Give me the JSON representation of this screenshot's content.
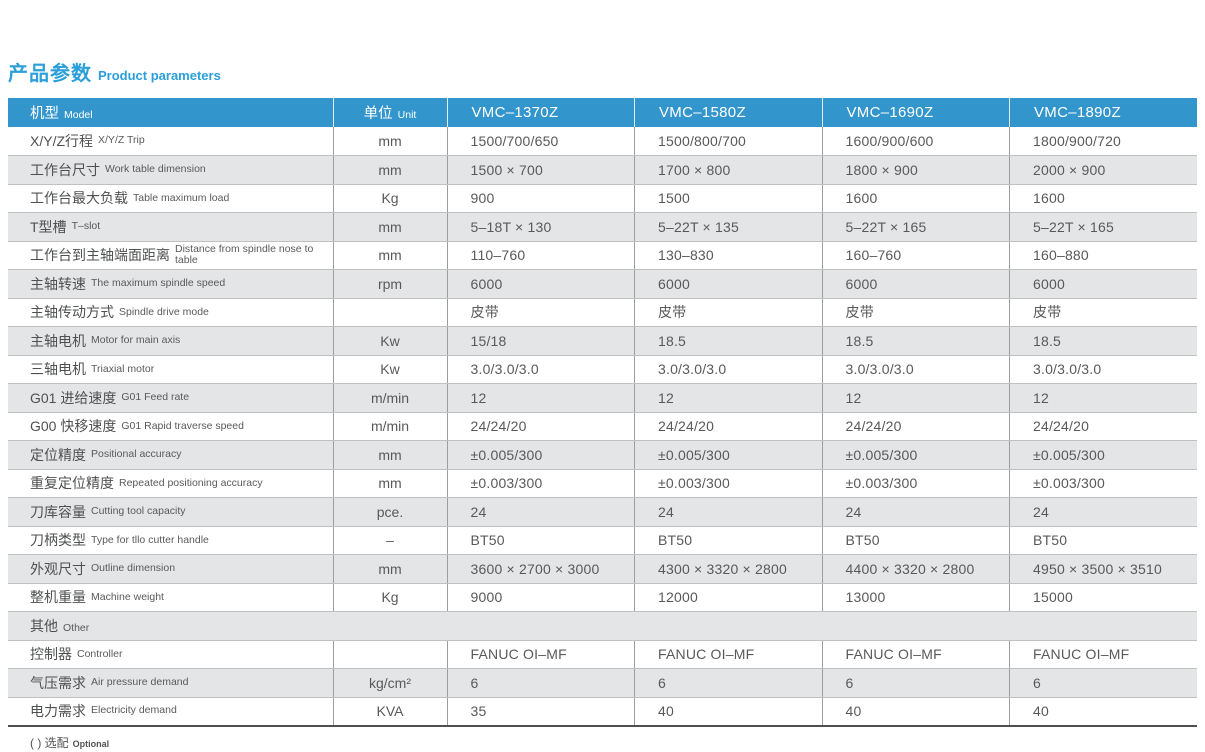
{
  "page": {
    "title_zh": "产品参数",
    "title_en": "Product parameters",
    "footnote_zh": "( ) 选配",
    "footnote_en": "Optional"
  },
  "colors": {
    "accent_blue": "#2b9fd9",
    "header_blue": "#3296cd",
    "stripe_gray": "#e4e5e6",
    "text_gray": "#58595b"
  },
  "table": {
    "header": {
      "model_zh": "机型",
      "model_en": "Model",
      "unit_zh": "单位",
      "unit_en": "Unit",
      "models": [
        "VMC–1370Z",
        "VMC–1580Z",
        "VMC–1690Z",
        "VMC–1890Z"
      ]
    },
    "rows": [
      {
        "zh": "X/Y/Z行程",
        "en": "X/Y/Z Trip",
        "unit": "mm",
        "values": [
          "1500/700/650",
          "1500/800/700",
          "1600/900/600",
          "1800/900/720"
        ]
      },
      {
        "zh": "工作台尺寸",
        "en": "Work table dimension",
        "unit": "mm",
        "values": [
          "1500 × 700",
          "1700 × 800",
          "1800 × 900",
          "2000 × 900"
        ]
      },
      {
        "zh": "工作台最大负载",
        "en": "Table maximum load",
        "unit": "Kg",
        "values": [
          "900",
          "1500",
          "1600",
          "1600"
        ]
      },
      {
        "zh": "T型槽",
        "en": "T–slot",
        "unit": "mm",
        "values": [
          "5–18T × 130",
          "5–22T × 135",
          "5–22T × 165",
          "5–22T × 165"
        ]
      },
      {
        "zh": "工作台到主轴端面距离",
        "en": "Distance from spindle nose to table",
        "unit": "mm",
        "values": [
          "110–760",
          "130–830",
          "160–760",
          "160–880"
        ]
      },
      {
        "zh": "主轴转速",
        "en": "The maximum spindle speed",
        "unit": "rpm",
        "values": [
          "6000",
          "6000",
          "6000",
          "6000"
        ]
      },
      {
        "zh": "主轴传动方式",
        "en": "Spindle drive mode",
        "unit": "",
        "values": [
          "皮带",
          "皮带",
          "皮带",
          "皮带"
        ]
      },
      {
        "zh": "主轴电机",
        "en": "Motor for main axis",
        "unit": "Kw",
        "values": [
          "15/18",
          "18.5",
          "18.5",
          "18.5"
        ]
      },
      {
        "zh": "三轴电机",
        "en": "Triaxial motor",
        "unit": "Kw",
        "values": [
          "3.0/3.0/3.0",
          "3.0/3.0/3.0",
          "3.0/3.0/3.0",
          "3.0/3.0/3.0"
        ]
      },
      {
        "zh": "G01 进给速度",
        "en": "G01 Feed rate",
        "unit": "m/min",
        "values": [
          "12",
          "12",
          "12",
          "12"
        ]
      },
      {
        "zh": "G00 快移速度",
        "en": "G01 Rapid traverse speed",
        "unit": "m/min",
        "values": [
          "24/24/20",
          "24/24/20",
          "24/24/20",
          "24/24/20"
        ]
      },
      {
        "zh": "定位精度",
        "en": "Positional accuracy",
        "unit": "mm",
        "values": [
          "±0.005/300",
          "±0.005/300",
          "±0.005/300",
          "±0.005/300"
        ]
      },
      {
        "zh": "重复定位精度",
        "en": "Repeated positioning accuracy",
        "unit": "mm",
        "values": [
          "±0.003/300",
          "±0.003/300",
          "±0.003/300",
          "±0.003/300"
        ]
      },
      {
        "zh": "刀库容量",
        "en": "Cutting tool capacity",
        "unit": "pce.",
        "values": [
          "24",
          "24",
          "24",
          "24"
        ]
      },
      {
        "zh": "刀柄类型",
        "en": "Type for tllo cutter handle",
        "unit": "–",
        "values": [
          "BT50",
          "BT50",
          "BT50",
          "BT50"
        ]
      },
      {
        "zh": "外观尺寸",
        "en": "Outline dimension",
        "unit": "mm",
        "values": [
          "3600 × 2700 × 3000",
          "4300 × 3320 × 2800",
          "4400 × 3320 × 2800",
          "4950 × 3500 × 3510"
        ]
      },
      {
        "zh": "整机重量",
        "en": "Machine weight",
        "unit": "Kg",
        "values": [
          "9000",
          "12000",
          "13000",
          "15000"
        ]
      },
      {
        "zh": "其他",
        "en": "Other",
        "section": true
      },
      {
        "zh": "控制器",
        "en": "Controller",
        "unit": "",
        "values": [
          "FANUC OI–MF",
          "FANUC OI–MF",
          "FANUC OI–MF",
          "FANUC OI–MF"
        ]
      },
      {
        "zh": "气压需求",
        "en": "Air pressure demand",
        "unit": "kg/cm²",
        "values": [
          "6",
          "6",
          "6",
          "6"
        ]
      },
      {
        "zh": "电力需求",
        "en": "Electricity demand",
        "unit": "KVA",
        "values": [
          "35",
          "40",
          "40",
          "40"
        ]
      }
    ]
  }
}
